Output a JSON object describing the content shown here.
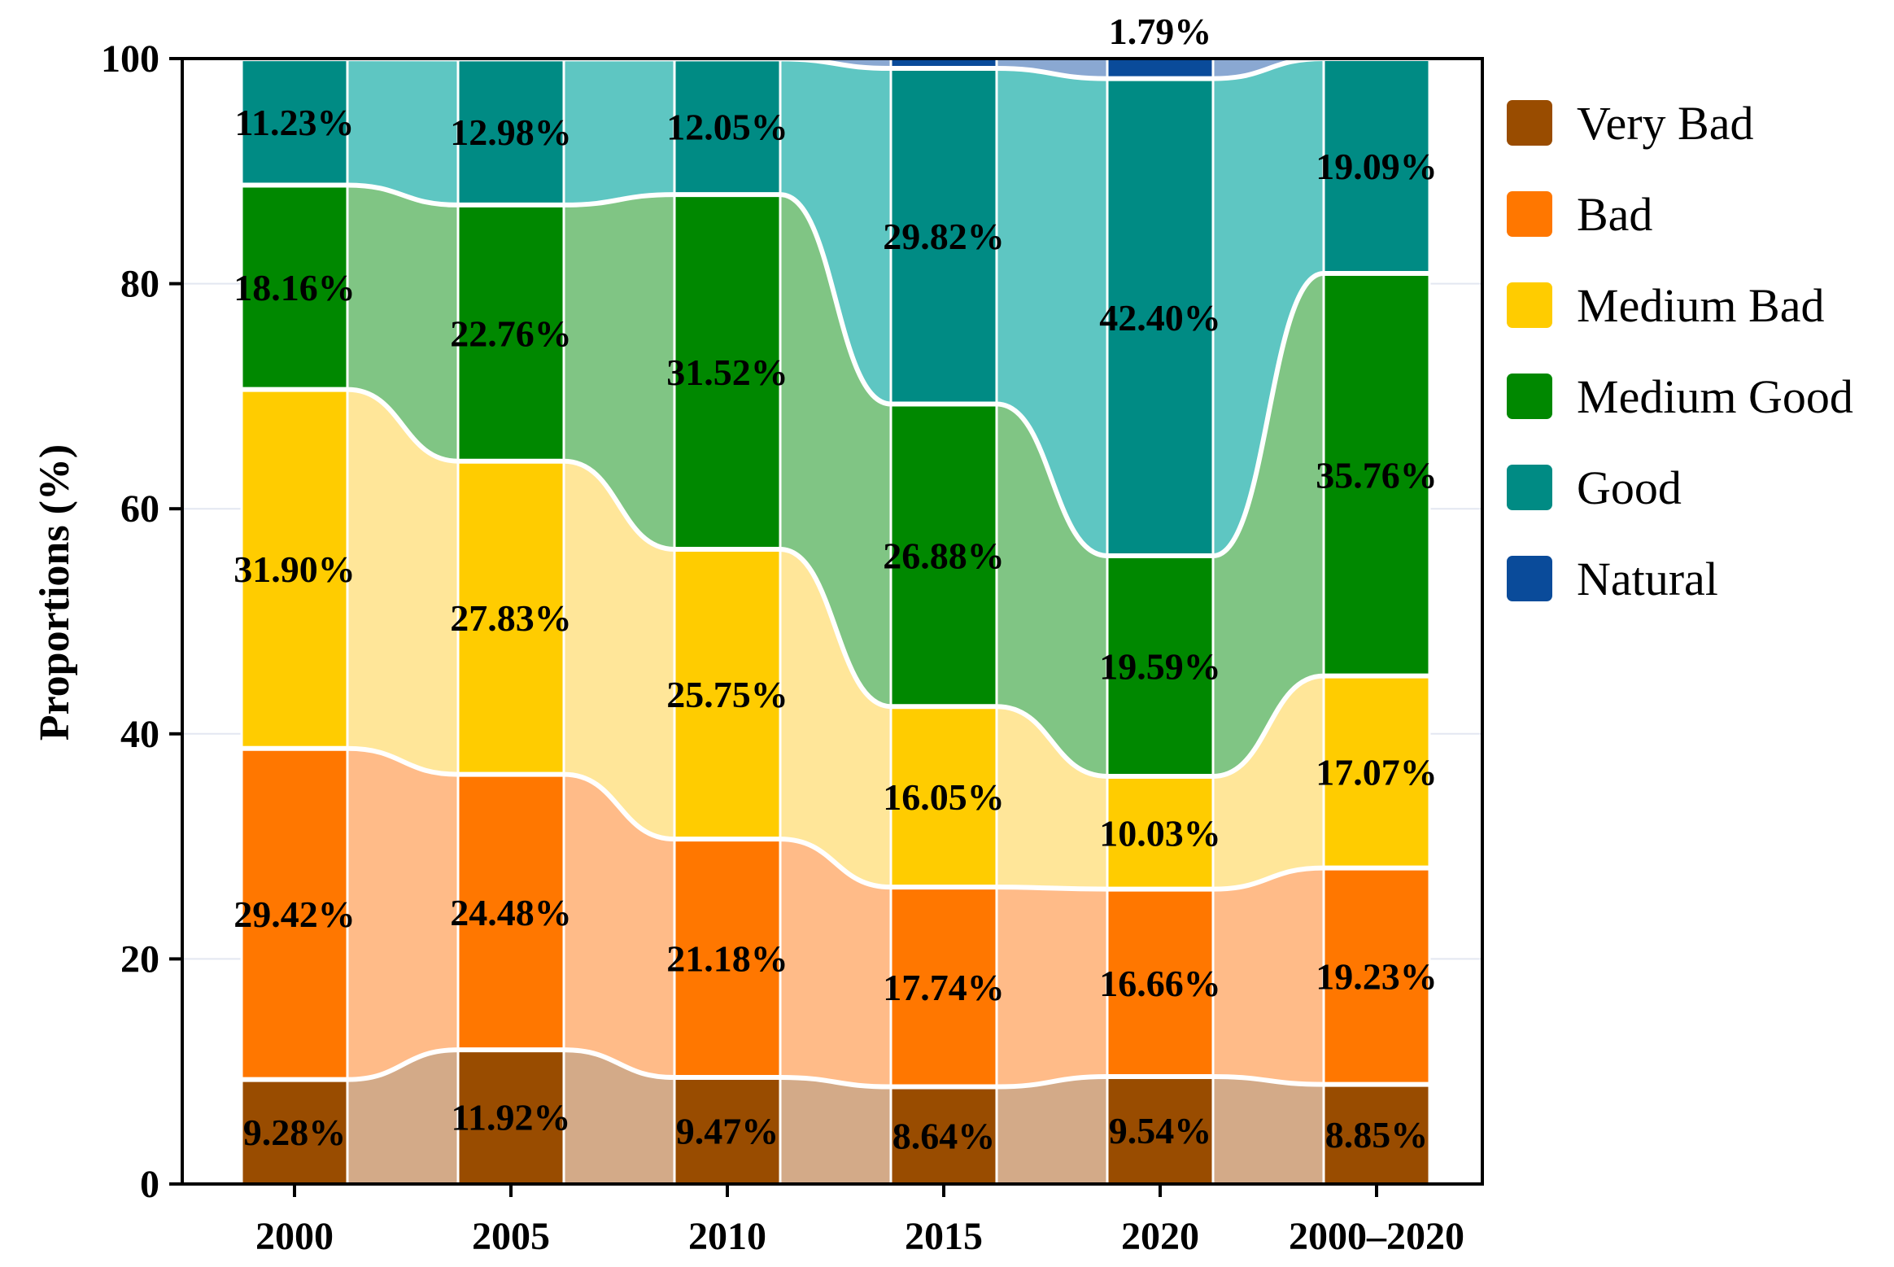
{
  "chart_data": {
    "type": "stacked-bar",
    "title": "",
    "xlabel": "",
    "ylabel": "Proportions (%)",
    "ylim": [
      0,
      100
    ],
    "yticks": [
      "0",
      "20",
      "40",
      "60",
      "80",
      "100"
    ],
    "categories": [
      "2000",
      "2005",
      "2010",
      "2015",
      "2020",
      "2000–2020"
    ],
    "series": [
      {
        "name": "Very Bad",
        "color": "#994c00",
        "light": "#d3aa88",
        "values": [
          9.28,
          11.92,
          9.47,
          8.64,
          9.54,
          8.85
        ],
        "labels": [
          "9.28%",
          "11.92%",
          "9.47%",
          "8.64%",
          "9.54%",
          "8.85%"
        ]
      },
      {
        "name": "Bad",
        "color": "#ff7700",
        "light": "#ffbb88",
        "values": [
          29.42,
          24.48,
          21.18,
          17.74,
          16.66,
          19.23
        ],
        "labels": [
          "29.42%",
          "24.48%",
          "21.18%",
          "17.74%",
          "16.66%",
          "19.23%"
        ]
      },
      {
        "name": "Medium Bad",
        "color": "#ffcc00",
        "light": "#ffe699",
        "values": [
          31.9,
          27.83,
          25.75,
          16.05,
          10.03,
          17.07
        ],
        "labels": [
          "31.90%",
          "27.83%",
          "25.75%",
          "16.05%",
          "10.03%",
          "17.07%"
        ]
      },
      {
        "name": "Medium Good",
        "color": "#008800",
        "light": "#80c584",
        "values": [
          18.16,
          22.76,
          31.52,
          26.88,
          19.59,
          35.76
        ],
        "labels": [
          "18.16%",
          "22.76%",
          "31.52%",
          "26.88%",
          "19.59%",
          "35.76%"
        ]
      },
      {
        "name": "Good",
        "color": "#008b84",
        "light": "#5ec6c2",
        "values": [
          11.23,
          12.98,
          12.05,
          29.82,
          42.4,
          19.09
        ],
        "labels": [
          "11.23%",
          "12.98%",
          "12.05%",
          "29.82%",
          "42.40%",
          "19.09%"
        ]
      },
      {
        "name": "Natural",
        "color": "#0a4b9a",
        "light": "#8aa8d2",
        "values": [
          0,
          0,
          0,
          0.87,
          1.79,
          0
        ],
        "labels": [
          "",
          "",
          "",
          "",
          "1.79%",
          ""
        ]
      }
    ],
    "legend_position": "right",
    "grid": true
  }
}
